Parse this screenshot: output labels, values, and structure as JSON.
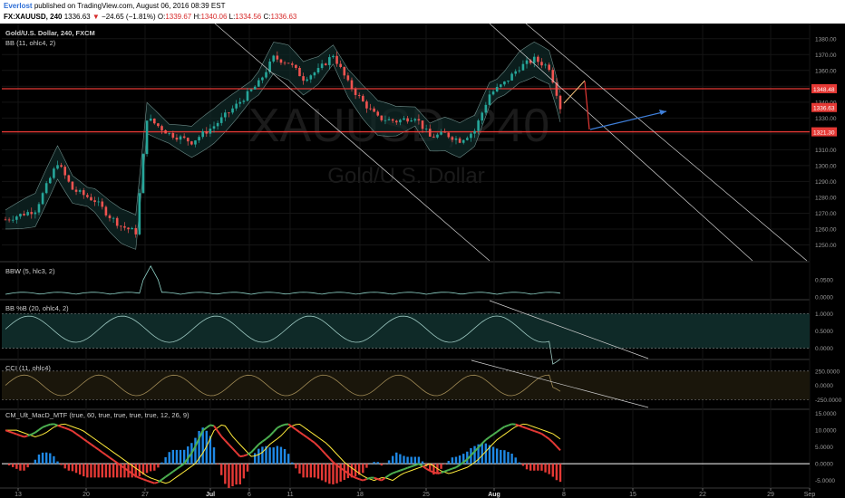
{
  "header": {
    "author": "Everlost",
    "published": "published on TradingView.com, August 06, 2016 08:39 EST",
    "symbol": "FX:XAUUSD, 240",
    "last": "1336.63",
    "change_arrow": "▼",
    "change": "−24.65 (−1.81%)",
    "o_label": "O:",
    "o_value": "1339.67",
    "h_label": "H:",
    "h_value": "1340.06",
    "l_label": "L:",
    "l_value": "1334.56",
    "c_label": "C:",
    "c_value": "1336.63"
  },
  "watermark": {
    "symbol": "XAUUSD, 240",
    "name": "Gold/U.S. Dollar"
  },
  "panes": {
    "main": {
      "title": "Gold/U.S. Dollar, 240, FXCM",
      "indicator": "BB (11, ohlc4, 2)"
    },
    "bbw": {
      "title": "BBW (5, hlc3, 2)"
    },
    "bbpct": {
      "title": "BB %B (20, ohlc4, 2)"
    },
    "cci": {
      "title": "CCI (11, ohlc4)"
    },
    "macd": {
      "title": "CM_Ult_MacD_MTF (true, 60, true, true, true, true, 12, 26, 9)"
    }
  },
  "price_tags": [
    {
      "value": "1348.48",
      "price": 1348.48,
      "color": "#e53935"
    },
    {
      "value": "1336.63",
      "price": 1336.63,
      "color": "#e53935"
    },
    {
      "value": "1321.30",
      "price": 1321.3,
      "color": "#e53935"
    }
  ],
  "colors": {
    "bull": "#26a69a",
    "bear": "#ef5350",
    "level": "#e53935",
    "bb": "#b2dfdb",
    "macd_green": "#4caf50",
    "macd_red": "#e53935",
    "signal": "#ffeb3b",
    "hist_blue": "#1e88e5",
    "background": "#000000"
  },
  "chart_data": [
    {
      "type": "candlestick",
      "title": "Gold/U.S. Dollar, 240, FXCM",
      "x_tick_labels": [
        "13",
        "20",
        "27",
        "Jul",
        "6",
        "11",
        "18",
        "25",
        "Aug",
        "8",
        "15",
        "22",
        "29",
        "Sep"
      ],
      "y_ticks": [
        1250.0,
        1260.0,
        1270.0,
        1280.0,
        1290.0,
        1300.0,
        1310.0,
        1320.0,
        1330.0,
        1340.0,
        1350.0,
        1360.0,
        1370.0,
        1380.0
      ],
      "ylim": [
        1240,
        1385
      ],
      "horizontal_levels": [
        1348.48,
        1321.3
      ],
      "close_path": [
        {
          "x": "13",
          "close": 1266
        },
        {
          "x": "16",
          "close": 1280
        },
        {
          "x": "17",
          "close": 1300
        },
        {
          "x": "20",
          "close": 1285
        },
        {
          "x": "23",
          "close": 1265
        },
        {
          "x": "24",
          "close": 1260
        },
        {
          "x": "24b",
          "close": 1330
        },
        {
          "x": "27",
          "close": 1318
        },
        {
          "x": "29",
          "close": 1322
        },
        {
          "x": "Jul",
          "close": 1330
        },
        {
          "x": "5",
          "close": 1350
        },
        {
          "x": "6",
          "close": 1368
        },
        {
          "x": "8",
          "close": 1360
        },
        {
          "x": "11",
          "close": 1370
        },
        {
          "x": "13",
          "close": 1345
        },
        {
          "x": "15",
          "close": 1330
        },
        {
          "x": "18",
          "close": 1328
        },
        {
          "x": "20",
          "close": 1330
        },
        {
          "x": "22",
          "close": 1315
        },
        {
          "x": "25",
          "close": 1318
        },
        {
          "x": "27",
          "close": 1320
        },
        {
          "x": "28",
          "close": 1342
        },
        {
          "x": "Aug",
          "close": 1355
        },
        {
          "x": "3",
          "close": 1364
        },
        {
          "x": "4",
          "close": 1362
        },
        {
          "x": "5",
          "close": 1336.63
        }
      ],
      "last": {
        "open": 1339.67,
        "high": 1340.06,
        "low": 1334.56,
        "close": 1336.63
      }
    },
    {
      "type": "line",
      "title": "BBW (5, hlc3, 2)",
      "y_ticks": [
        0.05,
        0.0
      ],
      "ylim": [
        -0.005,
        0.1
      ]
    },
    {
      "type": "line",
      "title": "BB %B (20, ohlc4, 2)",
      "y_ticks": [
        1.0,
        0.5,
        0.0
      ],
      "ylim": [
        -0.3,
        1.35
      ]
    },
    {
      "type": "line",
      "title": "CCI (11, ohlc4)",
      "y_ticks": [
        250.0,
        0.0,
        -250.0
      ],
      "ylim": [
        -400,
        420
      ],
      "bands": [
        250,
        -250
      ]
    },
    {
      "type": "line",
      "title": "CM_Ult_MacD_MTF (true, 60, true, true, true, true, 12, 26, 9)",
      "y_ticks": [
        15.0,
        10.0,
        5.0,
        0.0,
        -5.0
      ],
      "ylim": [
        -7,
        16
      ],
      "series": [
        {
          "values": [
            10,
            9,
            8,
            9,
            11,
            12,
            11,
            10,
            8,
            6,
            4,
            2,
            0,
            -2,
            -4,
            -5,
            -6,
            -4,
            -2,
            0,
            4,
            10,
            12,
            8,
            5,
            2,
            3,
            6,
            8,
            11,
            12,
            10,
            8,
            6,
            3,
            0,
            -2,
            -4,
            -5,
            -4,
            -5,
            -3,
            -2,
            -1,
            0,
            -2,
            -3,
            -2,
            -1,
            1,
            4,
            7,
            9,
            11,
            12,
            11,
            10,
            9,
            7,
            4
          ]
        }
      ]
    }
  ]
}
